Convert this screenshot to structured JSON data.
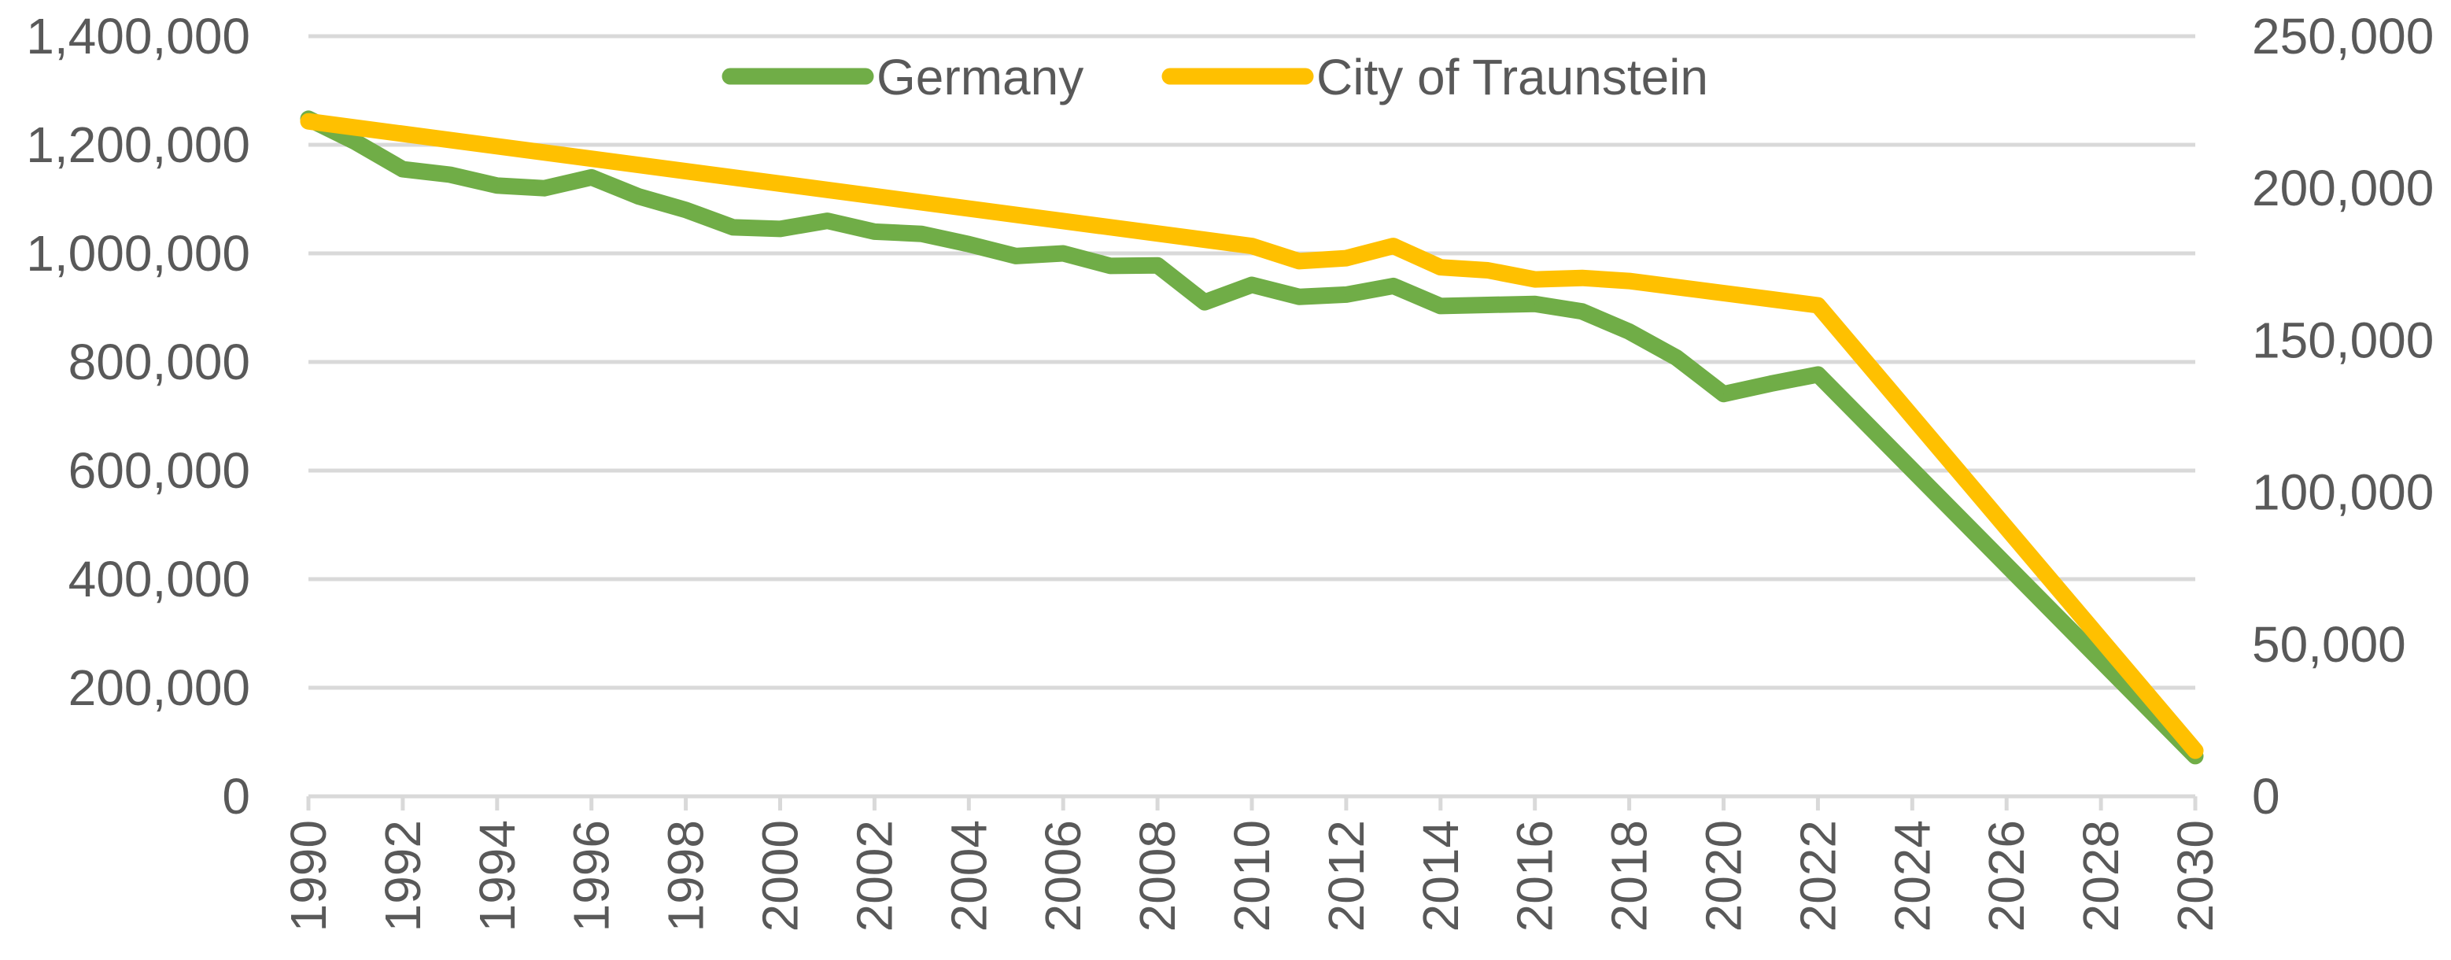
{
  "chart_data": {
    "type": "line",
    "title": "",
    "xlabel": "",
    "ylabel_left": "",
    "ylabel_right": "",
    "grid": true,
    "legend": {
      "position": "top-center"
    },
    "x": [
      1990,
      1991,
      1992,
      1993,
      1994,
      1995,
      1996,
      1997,
      1998,
      1999,
      2000,
      2001,
      2002,
      2003,
      2004,
      2005,
      2006,
      2007,
      2008,
      2009,
      2010,
      2011,
      2012,
      2013,
      2014,
      2015,
      2016,
      2017,
      2018,
      2019,
      2020,
      2021,
      2022,
      2030
    ],
    "x_tick_labels": [
      "1990",
      "1992",
      "1994",
      "1996",
      "1998",
      "2000",
      "2002",
      "2004",
      "2006",
      "2008",
      "2010",
      "2012",
      "2014",
      "2016",
      "2018",
      "2020",
      "2022",
      "2024",
      "2026",
      "2028",
      "2030"
    ],
    "y_left": {
      "range": [
        0,
        1400000
      ],
      "ticks": [
        0,
        200000,
        400000,
        600000,
        800000,
        1000000,
        1200000,
        1400000
      ],
      "tick_labels": [
        "0",
        "200,000",
        "400,000",
        "600,000",
        "800,000",
        "1,000,000",
        "1,200,000",
        "1,400,000"
      ]
    },
    "y_right": {
      "range": [
        0,
        250000
      ],
      "ticks": [
        0,
        50000,
        100000,
        150000,
        200000,
        250000
      ],
      "tick_labels": [
        "0",
        "50,000",
        "100,000",
        "150,000",
        "200,000",
        "250,000"
      ]
    },
    "series": [
      {
        "name": "Germany",
        "axis": "left",
        "color": "#70ad47",
        "x": [
          1990,
          1991,
          1992,
          1993,
          1994,
          1995,
          1996,
          1997,
          1998,
          1999,
          2000,
          2001,
          2002,
          2003,
          2004,
          2005,
          2006,
          2007,
          2008,
          2009,
          2010,
          2011,
          2012,
          2013,
          2014,
          2015,
          2016,
          2017,
          2018,
          2019,
          2020,
          2021,
          2022,
          2030
        ],
        "values": [
          1248000,
          1205000,
          1155000,
          1145000,
          1125000,
          1120000,
          1140000,
          1105000,
          1080000,
          1048000,
          1045000,
          1060000,
          1040000,
          1036000,
          1017000,
          995000,
          1000000,
          977000,
          978000,
          910000,
          942000,
          920000,
          924000,
          940000,
          903000,
          905000,
          907000,
          893000,
          856000,
          808000,
          741000,
          760000,
          777000,
          74000
        ]
      },
      {
        "name": "City of Traunstein",
        "axis": "right",
        "color": "#ffc000",
        "x": [
          1990,
          2010,
          2011,
          2012,
          2013,
          2014,
          2015,
          2016,
          2017,
          2018,
          2019,
          2020,
          2021,
          2022,
          2030
        ],
        "values": [
          222000,
          181000,
          176000,
          177000,
          181000,
          174000,
          173000,
          170000,
          170500,
          169500,
          167500,
          165500,
          163500,
          161500,
          15000
        ]
      }
    ]
  }
}
